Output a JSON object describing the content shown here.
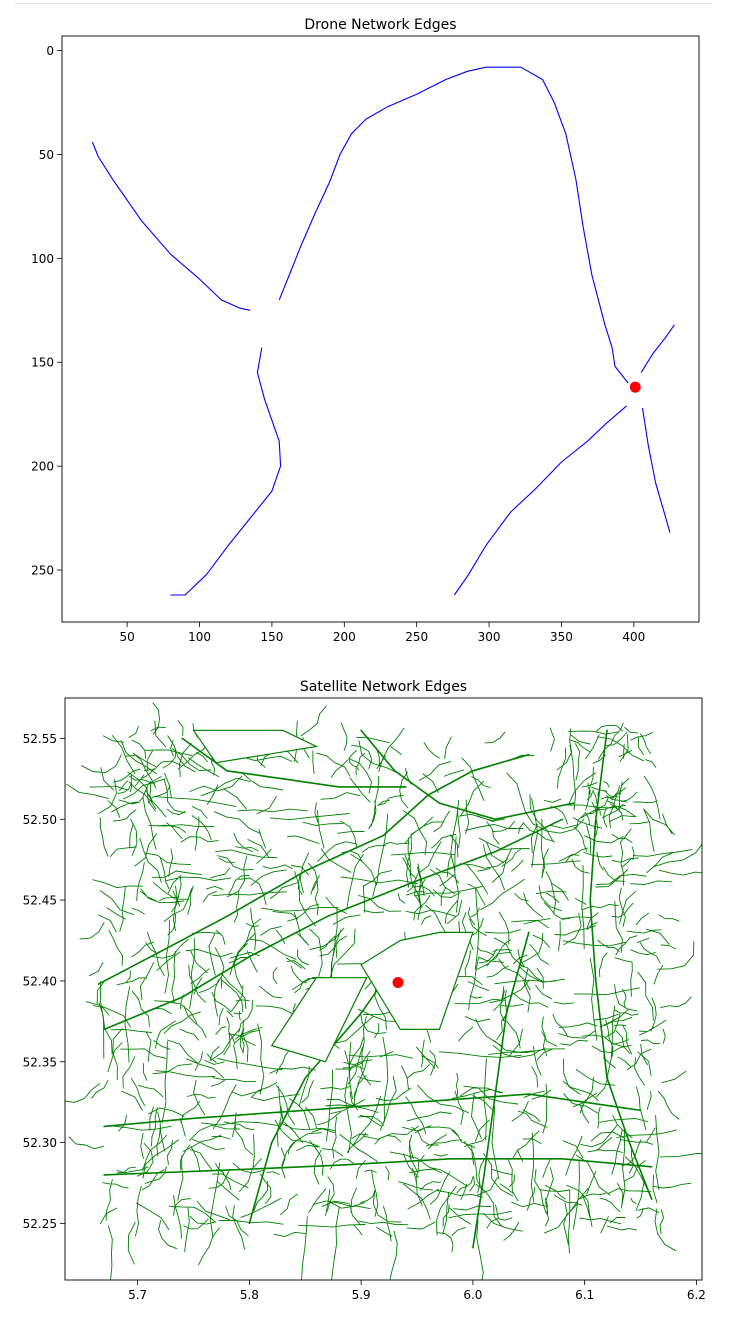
{
  "chart_data": [
    {
      "type": "line",
      "title": "Drone Network Edges",
      "xlabel": "",
      "ylabel": "",
      "xlim": [
        5,
        445
      ],
      "ylim": [
        275,
        -7
      ],
      "y_inverted": true,
      "grid": false,
      "x_ticks": [
        50,
        100,
        150,
        200,
        250,
        300,
        350,
        400
      ],
      "y_ticks": [
        0,
        50,
        100,
        150,
        200,
        250
      ],
      "x_tick_labels": [
        "50",
        "100",
        "150",
        "200",
        "250",
        "300",
        "350",
        "400"
      ],
      "y_tick_labels": [
        "0",
        "50",
        "100",
        "150",
        "200",
        "250"
      ],
      "edge_color": "#0000ff",
      "marker": {
        "x": 401,
        "y": 162,
        "color": "#ff0000"
      },
      "series": [
        {
          "points": [
            [
              26,
              44
            ],
            [
              30,
              51
            ],
            [
              40,
              62
            ],
            [
              60,
              82
            ],
            [
              80,
              98
            ],
            [
              100,
              110
            ],
            [
              115,
              120
            ],
            [
              128,
              124
            ],
            [
              135,
              125
            ]
          ]
        },
        {
          "points": [
            [
              155,
              120
            ],
            [
              162,
              108
            ],
            [
              170,
              94
            ],
            [
              180,
              78
            ],
            [
              190,
              63
            ],
            [
              197,
              50
            ],
            [
              205,
              40
            ],
            [
              215,
              33
            ],
            [
              230,
              27
            ],
            [
              250,
              21
            ],
            [
              270,
              14
            ],
            [
              285,
              10
            ],
            [
              298,
              8
            ],
            [
              310,
              8
            ],
            [
              322,
              8
            ],
            [
              337,
              14
            ],
            [
              345,
              25
            ],
            [
              353,
              40
            ],
            [
              360,
              62
            ],
            [
              365,
              85
            ],
            [
              371,
              108
            ],
            [
              380,
              132
            ],
            [
              385,
              143
            ],
            [
              387,
              152
            ],
            [
              396,
              160
            ]
          ]
        },
        {
          "points": [
            [
              143,
              143
            ],
            [
              140,
              155
            ],
            [
              145,
              168
            ],
            [
              155,
              188
            ],
            [
              156,
              200
            ],
            [
              150,
              212
            ],
            [
              135,
              225
            ],
            [
              120,
              238
            ],
            [
              105,
              252
            ],
            [
              90,
              262
            ],
            [
              80,
              262
            ]
          ]
        },
        {
          "points": [
            [
              395,
              171
            ],
            [
              380,
              180
            ],
            [
              368,
              188
            ],
            [
              350,
              198
            ],
            [
              332,
              211
            ],
            [
              315,
              222
            ],
            [
              298,
              238
            ],
            [
              285,
              253
            ],
            [
              276,
              262
            ]
          ]
        },
        {
          "points": [
            [
              405,
              155
            ],
            [
              413,
              146
            ],
            [
              422,
              138
            ],
            [
              428,
              132
            ]
          ]
        },
        {
          "points": [
            [
              406,
              172
            ],
            [
              410,
              190
            ],
            [
              415,
              208
            ],
            [
              420,
              220
            ],
            [
              425,
              232
            ]
          ]
        }
      ]
    },
    {
      "type": "line",
      "title": "Satellite Network Edges",
      "xlabel": "",
      "ylabel": "",
      "xlim": [
        5.635,
        6.205
      ],
      "ylim": [
        52.215,
        52.575
      ],
      "grid": false,
      "x_ticks": [
        5.7,
        5.8,
        5.9,
        6.0,
        6.1,
        6.2
      ],
      "y_ticks": [
        52.25,
        52.3,
        52.35,
        52.4,
        52.45,
        52.5,
        52.55
      ],
      "x_tick_labels": [
        "5.7",
        "5.8",
        "5.9",
        "6.0",
        "6.1",
        "6.2"
      ],
      "y_tick_labels": [
        "52.25",
        "52.30",
        "52.35",
        "52.40",
        "52.45",
        "52.50",
        "52.55"
      ],
      "edge_color": "#008000",
      "marker": {
        "x": 5.933,
        "y": 52.399,
        "color": "#ff0000"
      },
      "extent": {
        "x": [
          5.665,
          6.175
        ],
        "y": [
          52.243,
          52.557
        ]
      },
      "major_routes": [
        [
          [
            5.665,
            52.398
          ],
          [
            5.72,
            52.418
          ],
          [
            5.78,
            52.44
          ],
          [
            5.85,
            52.468
          ],
          [
            5.92,
            52.49
          ],
          [
            5.96,
            52.515
          ],
          [
            6.0,
            52.53
          ],
          [
            6.05,
            52.54
          ]
        ],
        [
          [
            5.67,
            52.37
          ],
          [
            5.74,
            52.39
          ],
          [
            5.8,
            52.415
          ],
          [
            5.87,
            52.44
          ],
          [
            5.95,
            52.462
          ],
          [
            6.02,
            52.48
          ],
          [
            6.08,
            52.5
          ]
        ],
        [
          [
            5.9,
            52.555
          ],
          [
            5.93,
            52.53
          ],
          [
            5.97,
            52.51
          ],
          [
            6.02,
            52.5
          ],
          [
            6.09,
            52.51
          ]
        ],
        [
          [
            5.74,
            52.55
          ],
          [
            5.78,
            52.53
          ],
          [
            5.83,
            52.525
          ],
          [
            5.88,
            52.52
          ],
          [
            5.94,
            52.52
          ]
        ],
        [
          [
            6.12,
            52.555
          ],
          [
            6.11,
            52.5
          ],
          [
            6.105,
            52.45
          ],
          [
            6.11,
            52.4
          ],
          [
            6.12,
            52.34
          ],
          [
            6.14,
            52.3
          ],
          [
            6.16,
            52.265
          ]
        ],
        [
          [
            5.8,
            52.25
          ],
          [
            5.82,
            52.3
          ],
          [
            5.85,
            52.34
          ],
          [
            5.9,
            52.38
          ],
          [
            5.94,
            52.42
          ]
        ],
        [
          [
            6.0,
            52.235
          ],
          [
            6.01,
            52.28
          ],
          [
            6.02,
            52.33
          ],
          [
            6.03,
            52.38
          ],
          [
            6.05,
            52.43
          ]
        ],
        [
          [
            5.67,
            52.31
          ],
          [
            5.75,
            52.315
          ],
          [
            5.85,
            52.32
          ],
          [
            5.95,
            52.325
          ],
          [
            6.05,
            52.33
          ],
          [
            6.15,
            52.32
          ]
        ],
        [
          [
            5.67,
            52.28
          ],
          [
            5.78,
            52.283
          ],
          [
            5.88,
            52.286
          ],
          [
            5.98,
            52.29
          ],
          [
            6.08,
            52.29
          ],
          [
            6.16,
            52.285
          ]
        ]
      ],
      "dense_clusters": [
        {
          "cx": 5.78,
          "cy": 52.372,
          "r": 0.034
        },
        {
          "cx": 6.12,
          "cy": 52.51,
          "r": 0.045
        },
        {
          "cx": 6.15,
          "cy": 52.262,
          "r": 0.022
        },
        {
          "cx": 5.7,
          "cy": 52.525,
          "r": 0.025
        },
        {
          "cx": 5.89,
          "cy": 52.535,
          "r": 0.018
        },
        {
          "cx": 5.96,
          "cy": 52.465,
          "r": 0.02
        },
        {
          "cx": 6.02,
          "cy": 52.42,
          "r": 0.025
        },
        {
          "cx": 5.85,
          "cy": 52.41,
          "r": 0.018
        },
        {
          "cx": 5.93,
          "cy": 52.36,
          "r": 0.02
        },
        {
          "cx": 5.67,
          "cy": 52.34,
          "r": 0.015
        },
        {
          "cx": 6.14,
          "cy": 52.38,
          "r": 0.015
        }
      ],
      "empty_regions": [
        {
          "type": "polygon",
          "points": [
            [
              5.97,
              52.43
            ],
            [
              6.0,
              52.43
            ],
            [
              5.97,
              52.37
            ],
            [
              5.935,
              52.37
            ],
            [
              5.9,
              52.41
            ],
            [
              5.935,
              52.425
            ]
          ]
        },
        {
          "type": "polygon",
          "points": [
            [
              5.905,
              52.402
            ],
            [
              5.868,
              52.35
            ],
            [
              5.82,
              52.36
            ],
            [
              5.86,
              52.402
            ]
          ]
        },
        {
          "type": "polygon",
          "points": [
            [
              5.75,
              52.555
            ],
            [
              5.77,
              52.535
            ],
            [
              5.86,
              52.545
            ],
            [
              5.83,
              52.555
            ]
          ]
        }
      ]
    }
  ]
}
